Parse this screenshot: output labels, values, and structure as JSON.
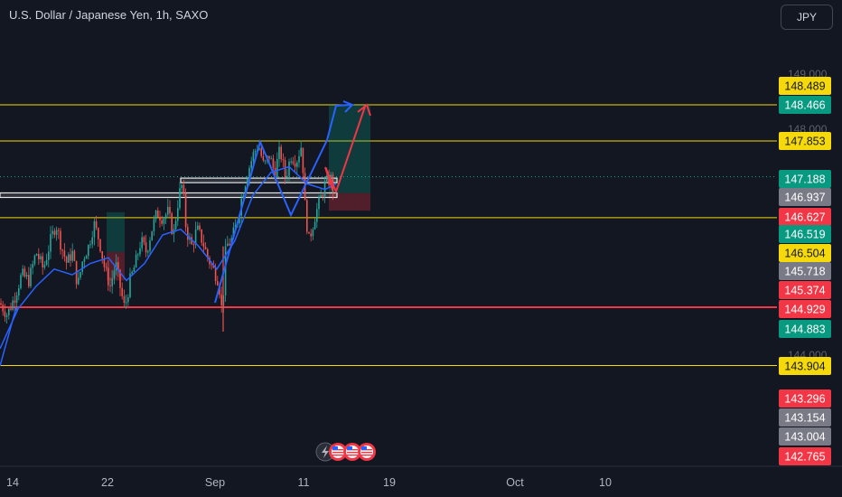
{
  "header": {
    "title": "U.S. Dollar / Japanese Yen, 1h, SAXO",
    "currency_button": "JPY"
  },
  "colors": {
    "background": "#131722",
    "candle_up": "#26a69a",
    "candle_down": "#ef5350",
    "ma_line": "#2962ff",
    "level_yellow": "#f5d90a",
    "level_red": "#f23645",
    "projection_blue": "#2962ff",
    "projection_red": "#f23645"
  },
  "chart_data": {
    "type": "candlestick",
    "x_ticks": [
      "14",
      "22",
      "Sep",
      "11",
      "19",
      "Oct",
      "10"
    ],
    "y_axis_faint_ticks": [
      "149.000",
      "148.000",
      "144.000"
    ],
    "price_labels": [
      {
        "value": "148.489",
        "color": "#f5d90a"
      },
      {
        "value": "148.466",
        "color": "#089981"
      },
      {
        "value": "147.853",
        "color": "#f5d90a"
      },
      {
        "value": "147.188",
        "color": "#089981"
      },
      {
        "value": "146.937",
        "color": "#787b86"
      },
      {
        "value": "146.627",
        "color": "#f23645"
      },
      {
        "value": "146.519",
        "color": "#089981"
      },
      {
        "value": "146.504",
        "color": "#f5d90a"
      },
      {
        "value": "145.718",
        "color": "#787b86"
      },
      {
        "value": "145.374",
        "color": "#f23645"
      },
      {
        "value": "144.929",
        "color": "#f23645"
      },
      {
        "value": "144.883",
        "color": "#089981"
      },
      {
        "value": "143.904",
        "color": "#f5d90a"
      },
      {
        "value": "143.296",
        "color": "#f23645"
      },
      {
        "value": "143.154",
        "color": "#787b86"
      },
      {
        "value": "143.004",
        "color": "#787b86"
      },
      {
        "value": "142.765",
        "color": "#f23645"
      }
    ],
    "horizontal_levels": [
      {
        "price": 148.489,
        "color": "#f5d90a"
      },
      {
        "price": 147.853,
        "color": "#f5d90a"
      },
      {
        "price": 146.504,
        "color": "#f5d90a"
      },
      {
        "price": 144.929,
        "color": "#f23645"
      },
      {
        "price": 143.904,
        "color": "#f5d90a"
      }
    ],
    "price_path": [
      [
        0,
        145.0
      ],
      [
        8,
        144.8
      ],
      [
        16,
        145.1
      ],
      [
        24,
        145.5
      ],
      [
        32,
        145.4
      ],
      [
        40,
        145.9
      ],
      [
        48,
        145.6
      ],
      [
        56,
        146.1
      ],
      [
        62,
        146.4
      ],
      [
        68,
        146.0
      ],
      [
        74,
        145.7
      ],
      [
        80,
        145.9
      ],
      [
        86,
        145.3
      ],
      [
        92,
        145.8
      ],
      [
        98,
        146.0
      ],
      [
        104,
        146.4
      ],
      [
        110,
        146.1
      ],
      [
        116,
        145.6
      ],
      [
        122,
        145.3
      ],
      [
        128,
        145.7
      ],
      [
        134,
        145.2
      ],
      [
        138,
        144.9
      ],
      [
        144,
        145.4
      ],
      [
        150,
        145.7
      ],
      [
        156,
        146.1
      ],
      [
        162,
        145.9
      ],
      [
        168,
        146.3
      ],
      [
        174,
        146.6
      ],
      [
        180,
        146.5
      ],
      [
        186,
        146.6
      ],
      [
        192,
        146.2
      ],
      [
        198,
        146.9
      ],
      [
        202,
        147.1
      ],
      [
        206,
        146.3
      ],
      [
        212,
        146.0
      ],
      [
        218,
        146.3
      ],
      [
        224,
        146.1
      ],
      [
        230,
        145.8
      ],
      [
        236,
        145.6
      ],
      [
        242,
        145.4
      ],
      [
        246,
        144.8
      ],
      [
        250,
        146.0
      ],
      [
        256,
        146.1
      ],
      [
        262,
        146.4
      ],
      [
        268,
        146.9
      ],
      [
        274,
        147.3
      ],
      [
        280,
        147.6
      ],
      [
        286,
        147.8
      ],
      [
        292,
        147.4
      ],
      [
        298,
        147.6
      ],
      [
        304,
        147.3
      ],
      [
        310,
        147.7
      ],
      [
        316,
        147.2
      ],
      [
        322,
        147.6
      ],
      [
        328,
        147.5
      ],
      [
        334,
        147.8
      ],
      [
        338,
        146.6
      ],
      [
        342,
        146.1
      ],
      [
        348,
        146.5
      ],
      [
        354,
        146.8
      ],
      [
        360,
        147.1
      ],
      [
        366,
        147.2
      ],
      [
        370,
        146.9
      ]
    ],
    "moving_average": [
      [
        0,
        144.2
      ],
      [
        20,
        144.9
      ],
      [
        40,
        145.3
      ],
      [
        60,
        145.6
      ],
      [
        80,
        145.5
      ],
      [
        100,
        145.7
      ],
      [
        120,
        145.8
      ],
      [
        140,
        145.4
      ],
      [
        160,
        145.7
      ],
      [
        180,
        146.2
      ],
      [
        200,
        146.3
      ],
      [
        220,
        146.0
      ],
      [
        240,
        145.6
      ],
      [
        260,
        146.1
      ],
      [
        280,
        146.9
      ],
      [
        300,
        147.3
      ],
      [
        320,
        147.4
      ],
      [
        340,
        147.1
      ],
      [
        360,
        147.0
      ],
      [
        372,
        147.1
      ]
    ],
    "zones": [
      {
        "kind": "profit",
        "x0": 364,
        "x1": 410,
        "top": 148.489,
        "bottom": 146.937
      },
      {
        "kind": "loss",
        "x0": 364,
        "x1": 410,
        "top": 146.937,
        "bottom": 146.627
      },
      {
        "kind": "profit",
        "x0": 118,
        "x1": 138,
        "top": 146.6,
        "bottom": 145.9
      },
      {
        "kind": "loss",
        "x0": 118,
        "x1": 138,
        "top": 145.9,
        "bottom": 145.4
      }
    ],
    "white_boxes": [
      {
        "x0": 200,
        "x1": 373,
        "top": 147.2,
        "bottom": 147.12
      },
      {
        "x0": 0,
        "x1": 373,
        "top": 146.94,
        "bottom": 146.86
      }
    ]
  }
}
